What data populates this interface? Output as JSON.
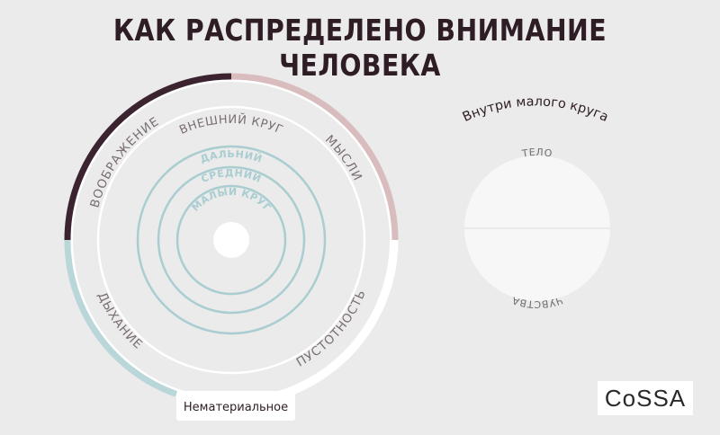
{
  "header": {
    "title": "КАК РАСПРЕДЕЛЕНО ВНИМАНИЕ ЧЕЛОВЕКА"
  },
  "outer_ring": {
    "segments": [
      {
        "label": "ВООБРАЖЕНИЕ",
        "color": "#3b2430"
      },
      {
        "label": "МЫСЛИ",
        "color": "#d8bcbe"
      },
      {
        "label": "ДЫХАНИЕ",
        "color": "#ffffff"
      },
      {
        "label": "ПУСТОТНОСТЬ",
        "color": "#b9d6d9"
      }
    ]
  },
  "inner_circles": {
    "outer_label": "ВНЕШНИЙ КРУГ",
    "far_label": "ДАЛЬНИЙ",
    "middle_label": "СРЕДНИЙ",
    "small_label": "МАЛЫЙ КРУГ",
    "ring_color": "#a9cdd0"
  },
  "badge": {
    "label": "Нематериальное"
  },
  "small_circle": {
    "title": "Внутри малого круга",
    "top_label": "ТЕЛО",
    "bottom_label": "ЧУВСТВА"
  },
  "logo": {
    "text": "CoSSA"
  }
}
